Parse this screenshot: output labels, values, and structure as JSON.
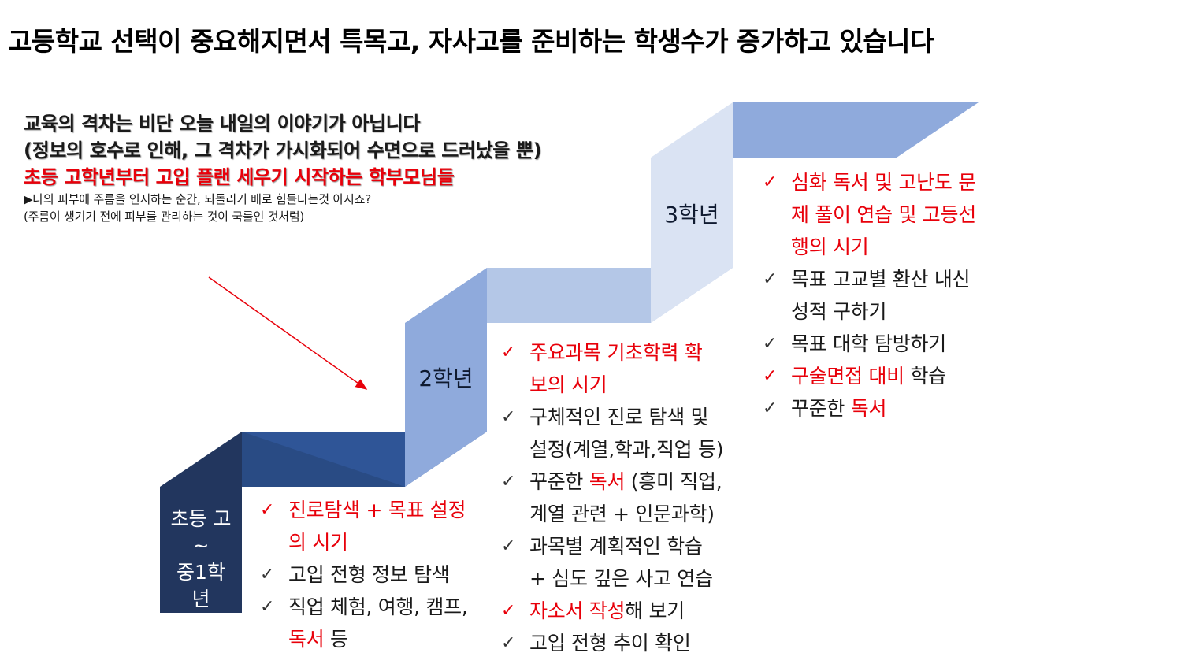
{
  "title": "고등학교 선택이 중요해지면서 특목고, 자사고를 준비하는 학생수가 증가하고 있습니다",
  "intro": {
    "line1": "교육의 격차는 비단 오늘 내일의 이야기가 아닙니다",
    "line2": "(정보의 호수로 인해, 그 격차가 가시화되어 수면으로 드러났을 뿐)",
    "line3": "초등 고학년부터 고입 플랜 세우기 시작하는 학부모님들",
    "note1": "▶나의 피부에 주름을 인지하는 순간, 되돌리기 배로 힘들다는것 아시죠?",
    "note2": "(주름이 생기기 전에 피부를 관리하는 것이 국룰인 것처럼)"
  },
  "colors": {
    "accent_red": "#e8000a",
    "stair_dark": "#22365e",
    "stair_mid": "#2f5597",
    "stair_light": "#8faadc",
    "stair_pale": "#dae3f3"
  },
  "steps": [
    {
      "label_lines": [
        "초등 고",
        "~",
        "중1학",
        "년"
      ],
      "items": [
        {
          "check": "red",
          "parts": [
            {
              "t": "진로탐색 + 목표 설정",
              "red": true
            }
          ],
          "cont": [
            {
              "t": "의 시기",
              "red": true
            }
          ]
        },
        {
          "check": "dark",
          "parts": [
            {
              "t": "고입 전형 정보 탐색",
              "red": false
            }
          ]
        },
        {
          "check": "dark",
          "parts": [
            {
              "t": "직업 체험, 여행, 캠프,",
              "red": false
            }
          ],
          "cont": [
            {
              "t": "독서",
              "red": true
            },
            {
              "t": " 등",
              "red": false
            }
          ]
        }
      ]
    },
    {
      "label_lines": [
        "2학년"
      ],
      "items": [
        {
          "check": "red",
          "parts": [
            {
              "t": "주요과목 기초학력 확",
              "red": true
            }
          ],
          "cont": [
            {
              "t": "보의 시기",
              "red": true
            }
          ]
        },
        {
          "check": "dark",
          "parts": [
            {
              "t": "구체적인 진로 탐색 및",
              "red": false
            }
          ],
          "cont": [
            {
              "t": "설정(계열,학과,직업 등)",
              "red": false
            }
          ]
        },
        {
          "check": "dark",
          "parts": [
            {
              "t": "꾸준한 ",
              "red": false
            },
            {
              "t": "독서",
              "red": true
            },
            {
              "t": " (흥미 직업,",
              "red": false
            }
          ],
          "cont": [
            {
              "t": "계열 관련 + 인문과학)",
              "red": false
            }
          ]
        },
        {
          "check": "dark",
          "parts": [
            {
              "t": "과목별 계획적인 학습",
              "red": false
            }
          ],
          "cont": [
            {
              "t": "+ 심도 깊은 사고 연습",
              "red": false
            }
          ]
        },
        {
          "check": "red",
          "parts": [
            {
              "t": "자소서 작성",
              "red": true
            },
            {
              "t": "해 보기",
              "red": false
            }
          ]
        },
        {
          "check": "dark",
          "parts": [
            {
              "t": "고입 전형 추이 확인",
              "red": false
            }
          ]
        }
      ]
    },
    {
      "label_lines": [
        "3학년"
      ],
      "items": [
        {
          "check": "red",
          "parts": [
            {
              "t": "심화 독서 및 고난도 문",
              "red": true
            }
          ],
          "cont": [
            {
              "t": "제 풀이 연습 및 고등선",
              "red": true
            }
          ],
          "cont2": [
            {
              "t": "행의 시기",
              "red": true
            }
          ]
        },
        {
          "check": "dark",
          "parts": [
            {
              "t": "목표 고교별 환산 내신",
              "red": false
            }
          ],
          "cont": [
            {
              "t": "성적 구하기",
              "red": false
            }
          ]
        },
        {
          "check": "dark",
          "parts": [
            {
              "t": "목표 대학 탐방하기",
              "red": false
            }
          ]
        },
        {
          "check": "red",
          "parts": [
            {
              "t": "구술면접 대비",
              "red": true
            },
            {
              "t": " 학습",
              "red": false
            }
          ]
        },
        {
          "check": "dark",
          "parts": [
            {
              "t": "꾸준한 ",
              "red": false
            },
            {
              "t": "독서",
              "red": true
            }
          ]
        }
      ]
    }
  ]
}
